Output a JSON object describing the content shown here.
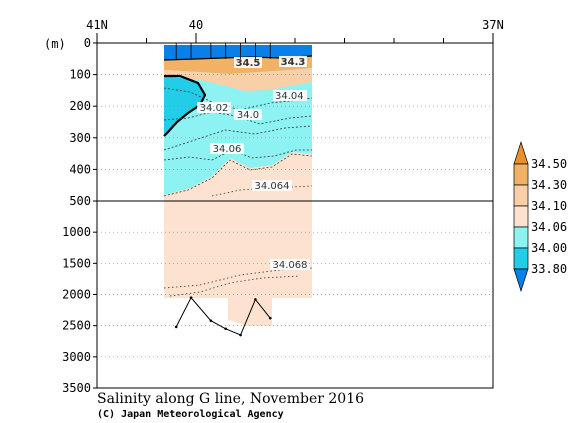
{
  "chart_data": {
    "type": "contour-section",
    "title": "Salinity along G line, November 2016",
    "credit": "(C) Japan Meteorological Agency",
    "y_unit_label": "(m)",
    "x_axis": {
      "direction": "latitude",
      "range": [
        41,
        37
      ],
      "tick_labels": [
        {
          "value": 41,
          "label": "41N"
        },
        {
          "value": 40,
          "label": "40"
        },
        {
          "value": 37,
          "label": "37N"
        }
      ],
      "minor_ticks": [
        40.5,
        39.5,
        39,
        38.5,
        38,
        37.5
      ]
    },
    "y_axis": {
      "upper_panel": {
        "range": [
          0,
          500
        ],
        "ticks": [
          0,
          100,
          200,
          300,
          400,
          500
        ]
      },
      "lower_panel": {
        "range": [
          500,
          3500
        ],
        "ticks": [
          1000,
          1500,
          2000,
          2500,
          3000,
          3500
        ]
      }
    },
    "colorbar": {
      "levels": [
        "34.50",
        "34.30",
        "34.10",
        "34.06",
        "34.00",
        "33.80"
      ],
      "colors": [
        "#e8902e",
        "#f2b266",
        "#f9cfa8",
        "#fde3cf",
        "#8cf2f2",
        "#22cde8",
        "#0a7fe8"
      ]
    },
    "contour_labels": [
      "34.04",
      "34.02",
      "34.0",
      "34.06",
      "34.064",
      "34.068",
      "34.5",
      "34.3"
    ],
    "stations_lat": [
      40.2,
      40.05,
      39.85,
      39.7,
      39.55,
      39.4,
      39.25
    ],
    "bottom_depth": [
      2520,
      2050,
      2420,
      2550,
      2650,
      2080,
      2380
    ]
  }
}
